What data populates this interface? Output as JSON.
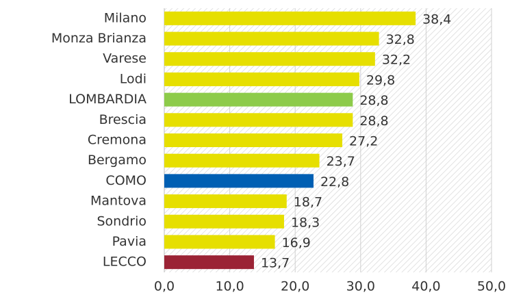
{
  "chart_data": {
    "type": "hbar",
    "categories": [
      "Milano",
      "Monza Brianza",
      "Varese",
      "Lodi",
      "LOMBARDIA",
      "Brescia",
      "Cremona",
      "Bergamo",
      "COMO",
      "Mantova",
      "Sondrio",
      "Pavia",
      "LECCO"
    ],
    "values": [
      38.4,
      32.8,
      32.2,
      29.8,
      28.8,
      28.8,
      27.2,
      23.7,
      22.8,
      18.7,
      18.3,
      16.9,
      13.7
    ],
    "value_labels": [
      "38,4",
      "32,8",
      "32,2",
      "29,8",
      "28,8",
      "28,8",
      "27,2",
      "23,7",
      "22,8",
      "18,7",
      "18,3",
      "16,9",
      "13,7"
    ],
    "colors": [
      "#e6df00",
      "#e6df00",
      "#e6df00",
      "#e6df00",
      "#8dcb4a",
      "#e6df00",
      "#e6df00",
      "#e6df00",
      "#005fb3",
      "#e6df00",
      "#e6df00",
      "#e6df00",
      "#9b2335"
    ],
    "xlim": [
      0,
      50
    ],
    "xticks": [
      {
        "value": 0,
        "label": "0,0"
      },
      {
        "value": 10,
        "label": "10,0"
      },
      {
        "value": 20,
        "label": "20,0"
      },
      {
        "value": 30,
        "label": "30,0"
      },
      {
        "value": 40,
        "label": "40,0"
      },
      {
        "value": 50,
        "label": "50,0"
      }
    ],
    "grid": true
  }
}
